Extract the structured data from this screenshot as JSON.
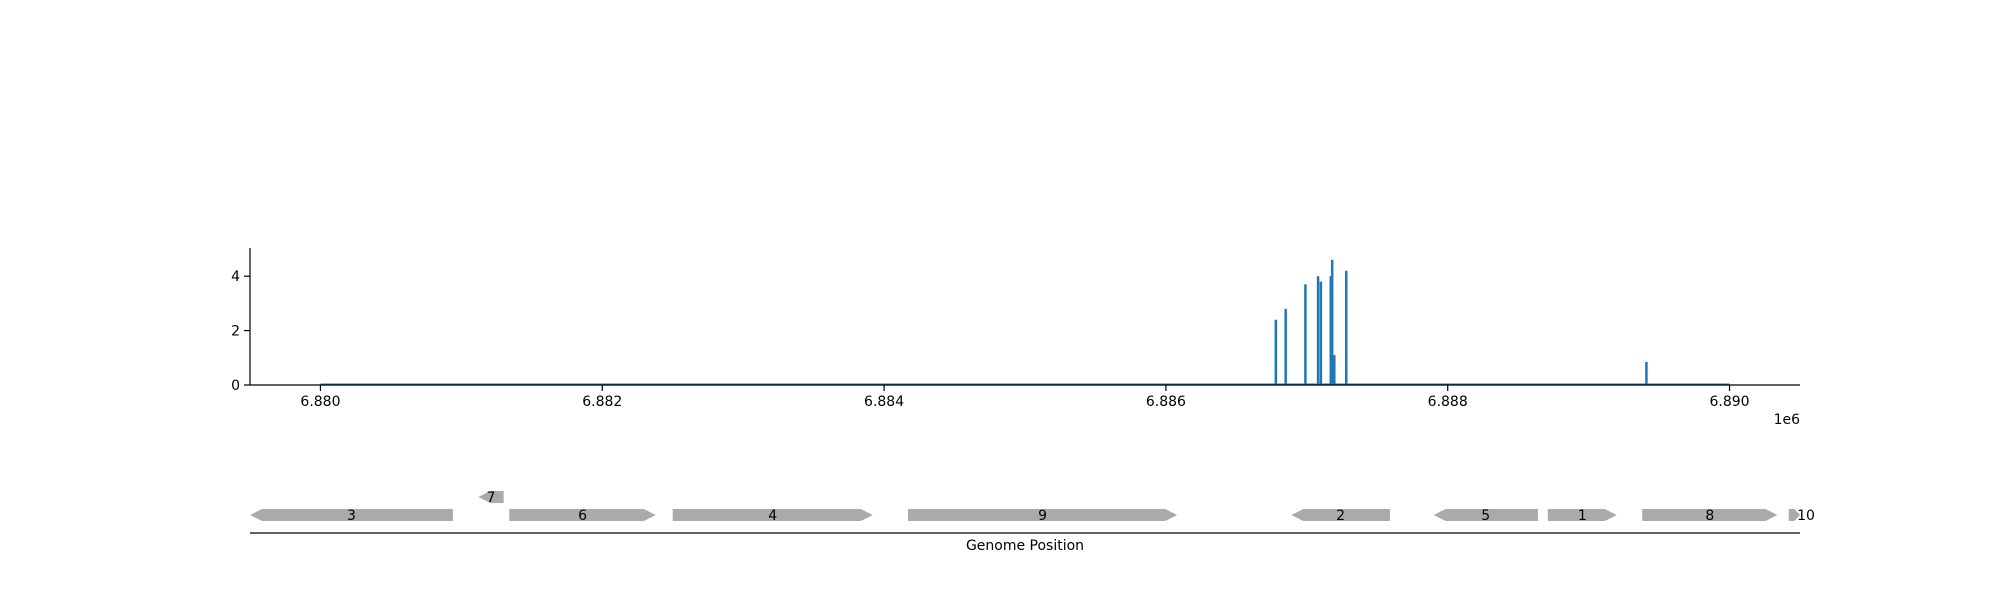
{
  "chart_data": [
    {
      "type": "bar",
      "x_offset_text": "1e6",
      "x_ticks": [
        6.88,
        6.882,
        6.884,
        6.886,
        6.888,
        6.89
      ],
      "x_tick_labels": [
        "6.880",
        "6.882",
        "6.884",
        "6.886",
        "6.888",
        "6.890"
      ],
      "y_ticks": [
        0,
        2,
        4
      ],
      "y_tick_labels": [
        "0",
        "2",
        "4"
      ],
      "xlim": [
        6879500,
        6890500
      ],
      "ylim": [
        0,
        5
      ],
      "baseline_range": [
        6880000,
        6890000
      ],
      "color": "#1f77b4",
      "x": [
        6886780,
        6886850,
        6886990,
        6887080,
        6887100,
        6887170,
        6887180,
        6887195,
        6887280,
        6889410
      ],
      "values": [
        2.4,
        2.8,
        3.7,
        4.0,
        3.8,
        4.0,
        4.6,
        1.1,
        4.2,
        0.85
      ]
    },
    {
      "type": "gene-track",
      "xlabel": "Genome Position",
      "gene_color": "#aaaaaa",
      "genes": [
        {
          "label": "3",
          "start": 6879500,
          "end": 6880940,
          "strand": "-",
          "row": 0
        },
        {
          "label": "7",
          "start": 6881120,
          "end": 6881300,
          "strand": "-",
          "row": 1
        },
        {
          "label": "6",
          "start": 6881340,
          "end": 6882380,
          "strand": "+",
          "row": 0
        },
        {
          "label": "4",
          "start": 6882500,
          "end": 6883920,
          "strand": "+",
          "row": 0
        },
        {
          "label": "9",
          "start": 6884170,
          "end": 6886080,
          "strand": "+",
          "row": 0
        },
        {
          "label": "2",
          "start": 6886890,
          "end": 6887590,
          "strand": "-",
          "row": 0
        },
        {
          "label": "5",
          "start": 6887900,
          "end": 6888640,
          "strand": "-",
          "row": 0
        },
        {
          "label": "1",
          "start": 6888710,
          "end": 6889200,
          "strand": "+",
          "row": 0
        },
        {
          "label": "8",
          "start": 6889380,
          "end": 6890340,
          "strand": "+",
          "row": 0
        },
        {
          "label": "10",
          "start": 6890420,
          "end": 6890500,
          "strand": "+",
          "row": 0
        }
      ]
    }
  ]
}
